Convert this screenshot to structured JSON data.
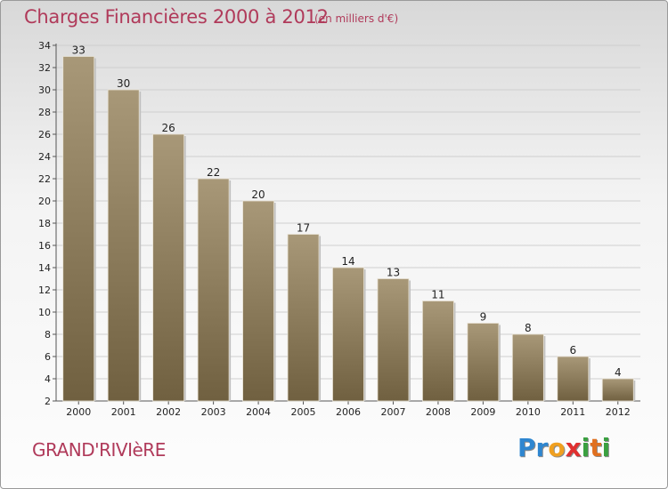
{
  "header": {
    "title": "Charges Financières 2000 à 2012",
    "subtitle": "(en milliers d'€)"
  },
  "footer": {
    "town": "GRAND'RIVIèRE",
    "logo_letters": [
      {
        "ch": "P",
        "color": "#2e86d0"
      },
      {
        "ch": "r",
        "color": "#2e86d0"
      },
      {
        "ch": "o",
        "color": "#f0a020"
      },
      {
        "ch": "x",
        "color": "#e03030"
      },
      {
        "ch": "i",
        "color": "#3aa040"
      },
      {
        "ch": "t",
        "color": "#e07020"
      },
      {
        "ch": "i",
        "color": "#3aa040"
      }
    ]
  },
  "colors": {
    "bar_light": "#a89878",
    "bar_dark": "#706040",
    "grid": "#cfcfcf",
    "axis": "#555555"
  },
  "chart_data": {
    "type": "bar",
    "categories": [
      "2000",
      "2001",
      "2002",
      "2003",
      "2004",
      "2005",
      "2006",
      "2007",
      "2008",
      "2009",
      "2010",
      "2011",
      "2012"
    ],
    "values": [
      33,
      30,
      26,
      22,
      20,
      17,
      14,
      13,
      11,
      9,
      8,
      6,
      4
    ],
    "title": "Charges Financières 2000 à 2012",
    "subtitle": "(en milliers d'€)",
    "xlabel": "",
    "ylabel": "",
    "ylim": [
      2,
      34
    ],
    "yticks": [
      2,
      4,
      6,
      8,
      10,
      12,
      14,
      16,
      18,
      20,
      22,
      24,
      26,
      28,
      30,
      32,
      34
    ],
    "grid": true,
    "legend": "none"
  }
}
